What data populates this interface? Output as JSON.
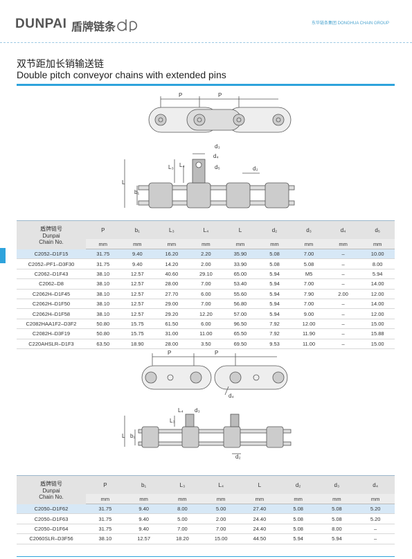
{
  "header": {
    "brand": "DUNPAI",
    "brand_cn": "盾牌链条",
    "group": "东华链条集团 DONGHUA CHAIN GROUP"
  },
  "title": "双节距加长销输送链",
  "subtitle": "Double pitch conveyor chains with extended pins",
  "diagrams": [
    {
      "labels": [
        "P",
        "P"
      ]
    },
    {
      "labels": [
        "d₃",
        "d₄",
        "L₃",
        "L₄",
        "d₅",
        "d₂",
        "L",
        "b₁"
      ]
    },
    {
      "labels": [
        "P",
        "P",
        "d₄"
      ]
    },
    {
      "labels": [
        "L₄",
        "d₃",
        "L₃",
        "L",
        "b₁",
        "d₂"
      ]
    }
  ],
  "tables": [
    {
      "head": [
        "盾牌链号",
        "Dunpai",
        "Chain No."
      ],
      "columns": [
        "P",
        "b₁",
        "L₃",
        "L₄",
        "L",
        "d₂",
        "d₃",
        "d₄",
        "d₅"
      ],
      "units": [
        "mm",
        "mm",
        "mm",
        "mm",
        "mm",
        "mm",
        "mm",
        "mm",
        "mm"
      ],
      "rows": [
        [
          "C2052–D1F15",
          "31.75",
          "9.40",
          "16.20",
          "2.20",
          "35.90",
          "5.08",
          "7.00",
          "–",
          "10.00"
        ],
        [
          "C2052–PF1–D3F30",
          "31.75",
          "9.40",
          "14.20",
          "2.00",
          "33.90",
          "5.08",
          "5.08",
          "–",
          "8.00"
        ],
        [
          "C2062–D1F43",
          "38.10",
          "12.57",
          "40.60",
          "29.10",
          "65.00",
          "5.94",
          "M5",
          "–",
          "5.94"
        ],
        [
          "C2062–D8",
          "38.10",
          "12.57",
          "28.00",
          "7.00",
          "53.40",
          "5.94",
          "7.00",
          "–",
          "14.00"
        ],
        [
          "C2062H–D1F45",
          "38.10",
          "12.57",
          "27.70",
          "6.00",
          "55.60",
          "5.94",
          "7.90",
          "2.00",
          "12.00"
        ],
        [
          "C2062H–D1F50",
          "38.10",
          "12.57",
          "29.00",
          "7.00",
          "56.80",
          "5.94",
          "7.00",
          "–",
          "14.00"
        ],
        [
          "C2062H–D1F58",
          "38.10",
          "12.57",
          "29.20",
          "12.20",
          "57.00",
          "5.94",
          "9.00",
          "–",
          "12.00"
        ],
        [
          "C2082HAA1F2–D3F2",
          "50.80",
          "15.75",
          "61.50",
          "6.00",
          "96.50",
          "7.92",
          "12.00",
          "–",
          "15.00"
        ],
        [
          "C2082H–D3F19",
          "50.80",
          "15.75",
          "31.00",
          "11.00",
          "65.50",
          "7.92",
          "11.90",
          "–",
          "15.88"
        ],
        [
          "C220AHSLR–D1F3",
          "63.50",
          "18.90",
          "28.00",
          "3.50",
          "69.50",
          "9.53",
          "11.00",
          "–",
          "15.00"
        ]
      ]
    },
    {
      "head": [
        "盾牌链号",
        "Dunpai",
        "Chain No."
      ],
      "columns": [
        "P",
        "b₁",
        "L₃",
        "L₄",
        "L",
        "d₂",
        "d₃",
        "d₄"
      ],
      "units": [
        "mm",
        "mm",
        "mm",
        "mm",
        "mm",
        "mm",
        "mm",
        "mm"
      ],
      "rows": [
        [
          "C2050–D1F62",
          "31.75",
          "9.40",
          "8.00",
          "5.00",
          "27.40",
          "5.08",
          "5.08",
          "5.20"
        ],
        [
          "C2050–D1F63",
          "31.75",
          "9.40",
          "5.00",
          "2.00",
          "24.40",
          "5.08",
          "5.08",
          "5.20"
        ],
        [
          "C2050–D1F64",
          "31.75",
          "9.40",
          "7.00",
          "7.00",
          "24.40",
          "5.08",
          "8.00",
          "–"
        ],
        [
          "C2060SLR–D3F56",
          "38.10",
          "12.57",
          "18.20",
          "15.00",
          "44.50",
          "5.94",
          "5.94",
          "–"
        ]
      ]
    }
  ]
}
